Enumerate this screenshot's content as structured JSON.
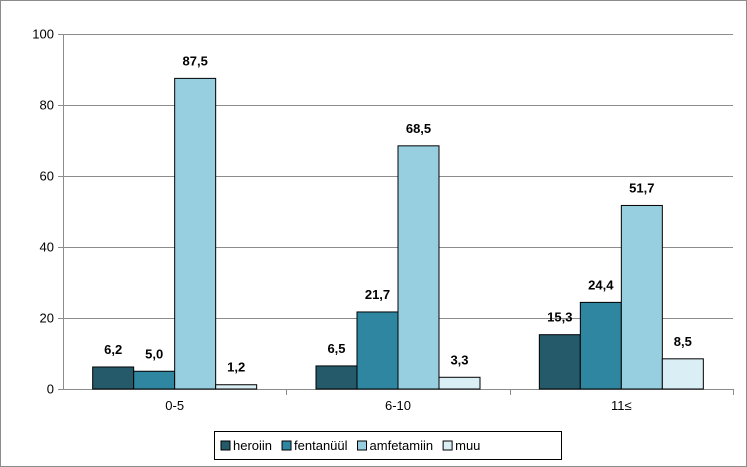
{
  "chart_data": {
    "type": "bar",
    "categories": [
      "0-5",
      "6-10",
      "11≤"
    ],
    "series": [
      {
        "name": "heroiin",
        "values": [
          6.2,
          6.5,
          15.3
        ],
        "labels": [
          "6,2",
          "6,5",
          "15,3"
        ],
        "color": "#245a6a"
      },
      {
        "name": "fentanüül",
        "values": [
          5.0,
          21.7,
          24.4
        ],
        "labels": [
          "5,0",
          "21,7",
          "24,4"
        ],
        "color": "#2f86a0"
      },
      {
        "name": "amfetamiin",
        "values": [
          87.5,
          68.5,
          51.7
        ],
        "labels": [
          "87,5",
          "68,5",
          "51,7"
        ],
        "color": "#98cfe0"
      },
      {
        "name": "muu",
        "values": [
          1.2,
          3.3,
          8.5
        ],
        "labels": [
          "1,2",
          "3,3",
          "8,5"
        ],
        "color": "#d9eef5"
      }
    ],
    "yticks": [
      "0",
      "20",
      "40",
      "60",
      "80",
      "100"
    ],
    "ylim": [
      0,
      100
    ],
    "grid": true,
    "legend_position": "bottom"
  }
}
